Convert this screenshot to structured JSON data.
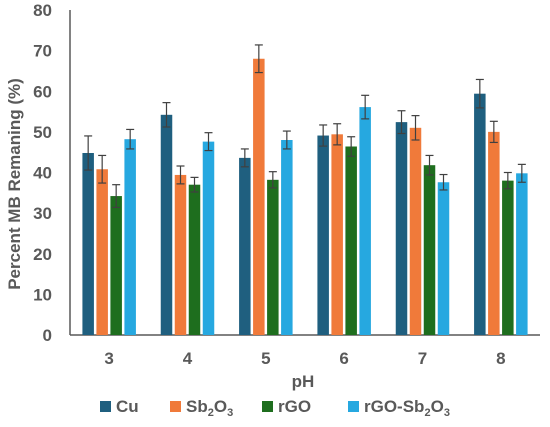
{
  "chart_data": {
    "type": "bar",
    "xlabel": "pH",
    "ylabel": "Percent MB Remaning (%)",
    "ylim": [
      0,
      80
    ],
    "yticks": [
      0,
      10,
      20,
      30,
      40,
      50,
      60,
      70,
      80
    ],
    "categories": [
      "3",
      "4",
      "5",
      "6",
      "7",
      "8"
    ],
    "grid": false,
    "legend_position": "bottom",
    "series": [
      {
        "name": "Cu",
        "legend_parts": [
          [
            "Cu",
            false
          ]
        ],
        "color": "#1f5f7f",
        "values": [
          44.8,
          54.2,
          43.6,
          49.1,
          52.4,
          59.4
        ],
        "errors": [
          4.2,
          3.0,
          2.2,
          2.6,
          2.8,
          3.5
        ]
      },
      {
        "name": "Sb2O3",
        "legend_parts": [
          [
            "Sb",
            false
          ],
          [
            "2",
            true
          ],
          [
            "O",
            false
          ],
          [
            "3",
            true
          ]
        ],
        "color": "#f07a3a",
        "values": [
          40.8,
          39.4,
          68.0,
          49.4,
          51.0,
          50.0
        ],
        "errors": [
          3.4,
          2.2,
          3.4,
          2.6,
          3.0,
          2.6
        ]
      },
      {
        "name": "rGO",
        "legend_parts": [
          [
            "rGO",
            false
          ]
        ],
        "color": "#1e6e1e",
        "values": [
          34.2,
          37.0,
          38.2,
          46.4,
          41.8,
          38.0
        ],
        "errors": [
          2.8,
          1.8,
          2.0,
          2.4,
          2.4,
          2.0
        ]
      },
      {
        "name": "rGO-Sb2O3",
        "legend_parts": [
          [
            "rGO-Sb",
            false
          ],
          [
            "2",
            true
          ],
          [
            "O",
            false
          ],
          [
            "3",
            true
          ]
        ],
        "color": "#26a8e0",
        "values": [
          48.2,
          47.6,
          48.0,
          56.1,
          37.6,
          39.8
        ],
        "errors": [
          2.4,
          2.2,
          2.2,
          2.9,
          1.9,
          2.2
        ]
      }
    ]
  }
}
